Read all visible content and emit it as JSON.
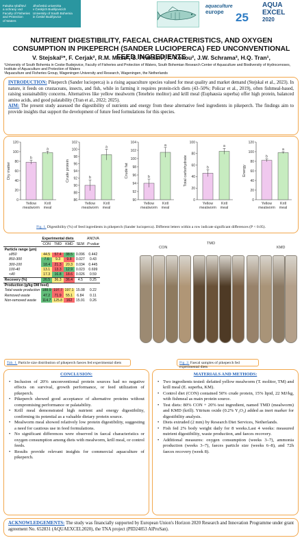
{
  "header": {
    "logo_left_lines_col1": [
      "Fakulta rybářství",
      "a ochrany vod",
      "Faculty of Fisheries",
      "and Protection",
      "of Waters"
    ],
    "logo_left_lines_col2": [
      "Jihočeská univerzita",
      "v Českých Budějovicích",
      "University of South Bohemia",
      "in České Budějovice"
    ],
    "ae_line1": "aquaculture",
    "ae_line2": "europe",
    "ae_num": "25",
    "aqua_line1": "AQUA",
    "aqua_line2": "EXCEL",
    "aqua_line3": "2020"
  },
  "title": "NUTRIENT DIGESTIBILITY, FAECAL CHARACTERISTICS, AND OXYGEN CONSUMPTION IN PIKEPERCH (SANDER LUCIOPERCA) FED UNCONVENTIONAL FEED INGREDIENTS",
  "authors": "V. Stejskal¹*, F. Cerjak², R.M. Mass², S. Prakash², F. Kokou², J.W. Schrama², H.Q. Tran¹,",
  "affiliations": [
    "¹University of South Bohemia in Ceske Budejovice, Faculty of Fisheries and Protection of Waters, South Bohemian Research Center of Aquaculture and Biodiversity of Hydrocenoses, Institute of Aquaculture and Protection of Waters",
    "²Aquaculture and Fisheries Group, Wageningen University and Research, Wageningen, the Netherlands"
  ],
  "intro": {
    "label": "INTRODUCTION:",
    "text": " Pikeperch (Sander lucioperca) is a rising aquaculture species valued for meat quality and market demand (Stejskal et al., 2023). In nature, it feeds on crustaceans, insects, and fish, while in farming it requires protein-rich diets (43–50%; Policar et al., 2019), often fishmeal-based, raising sustainability concerns. Alternatives like yellow mealworm (Tenebrio molitor) and krill meal (Euphausia superba) offer high protein, balanced amino acids, and good palatability (Tran et al., 2022; 2025).",
    "aim_label": "AIM:",
    "aim_text": " The present study assessed the digestibility of nutrients and energy from these alternative feed ingredients in pikeperch. The findings aim to provide insights that support the development of future feed formulations for this species."
  },
  "figure1_caption_label": "Fig. 1.",
  "figure1_caption": " Digestibility (%) of feed ingredients in pikeperch (Sander lucioperca). Different letters within a row indicate significant differences (P < 0.05).",
  "chart_data": [
    {
      "type": "bar",
      "ylabel": "Dry matter",
      "categories": [
        "Yellow mealworm",
        "Krill meal"
      ],
      "values": [
        78,
        98
      ],
      "errors": [
        4,
        3
      ],
      "letters": [
        "b",
        "a"
      ],
      "ylim": [
        0,
        120
      ],
      "yticks": [
        0,
        20,
        40,
        60,
        80,
        100,
        120
      ]
    },
    {
      "type": "bar",
      "ylabel": "Crude protein",
      "categories": [
        "Yellow mealworm",
        "Krill meal"
      ],
      "values": [
        90,
        98.5
      ],
      "errors": [
        1.5,
        1.5
      ],
      "letters": [
        "b",
        "a"
      ],
      "ylim": [
        86,
        102
      ],
      "yticks": [
        86,
        88,
        90,
        92,
        94,
        96,
        98,
        100,
        102
      ]
    },
    {
      "type": "bar",
      "ylabel": "Crude fat",
      "categories": [
        "Yellow mealworm",
        "Krill meal"
      ],
      "values": [
        94,
        101.5
      ],
      "errors": [
        1,
        1.2
      ],
      "letters": [
        "b",
        "a"
      ],
      "ylim": [
        90,
        104
      ],
      "yticks": [
        90,
        92,
        94,
        96,
        98,
        100,
        102,
        104
      ]
    },
    {
      "type": "bar",
      "ylabel": "Total carbohydrate",
      "categories": [
        "Yellow mealworm",
        "Krill meal"
      ],
      "values": [
        46,
        84
      ],
      "errors": [
        6,
        5
      ],
      "letters": [
        "b",
        "a"
      ],
      "ylim": [
        0,
        100
      ],
      "yticks": [
        0,
        20,
        40,
        60,
        80,
        100
      ]
    },
    {
      "type": "bar",
      "ylabel": "Energy",
      "categories": [
        "Yellow mealworm",
        "Krill meal"
      ],
      "values": [
        82,
        98
      ],
      "errors": [
        3,
        2
      ],
      "letters": [
        "b",
        "a"
      ],
      "ylim": [
        0,
        120
      ],
      "yticks": [
        0,
        20,
        40,
        60,
        80,
        100,
        120
      ]
    }
  ],
  "bar_colors": {
    "mealworm": "#f0c8ee",
    "krill": "#c7ecc0",
    "outline": "#555555"
  },
  "table": {
    "group_header": "Experimental diets",
    "columns": [
      "",
      "CON",
      "TMD",
      "KMD",
      "SEM",
      "ANOVA P-value"
    ],
    "section1": "Particle range (µm)",
    "rows1": [
      [
        "≥850",
        "44.5",
        "57.4",
        "38.5",
        "0.096",
        "0.442"
      ],
      [
        "850-300",
        "7.6",
        "9.3",
        "9.8",
        "0.027",
        "0.43"
      ],
      [
        "300-100",
        "18.4",
        "21.3",
        "20.3",
        "0.034",
        "0.445"
      ],
      [
        "100-40",
        "13.1",
        "13.3",
        "12.9",
        "0.023",
        "0.699"
      ],
      [
        "<40",
        "17.3",
        "16.8",
        "18.6",
        "0.026",
        "0.59"
      ]
    ],
    "recovery": [
      "Recovery (%)",
      "26.5",
      "36.3",
      "36.4",
      "4.5",
      "0.25"
    ],
    "section2": "Production (g/kg DM feed)",
    "rows2": [
      [
        "Total waste production",
        "188.9",
        "197.7",
        "197.1",
        "15.08",
        "0.22"
      ],
      [
        "Removed waste",
        "47.2",
        "71.9",
        "55.1",
        "6.84",
        "0.11"
      ],
      [
        "Non-removed waste",
        "114.7",
        "125.8",
        "162",
        "15.91",
        "0.26"
      ]
    ]
  },
  "table_caption_label": "Tab. 1.",
  "table_caption": " Particle size distribution of pikeperch faeces fed experimental diets",
  "photo_labels": [
    "CON",
    "TMD",
    "KMD"
  ],
  "figure2_caption_label": "Fig. 2.",
  "figure2_caption": " Faecal samples of pikeperch fed experimental diets",
  "conclusion": {
    "title": "CONCLUSION:",
    "items": [
      "Inclusion of 20% unconventional protein sources had no negative effects on survival, growth performance, or feed utilization of pikeperch.",
      "Pikeperch showed good acceptance of alternative proteins without compromising performance or palatability.",
      "Krill meal demonstrated high nutrient and energy digestibility, confirming its potential as a valuable dietary protein source.",
      "Mealworm meal showed relatively low protein digestibility, suggesting a need for cautious use in feed formulations.",
      "No significant differences were observed in faecal characteristics or oxygen consumption among diets with mealworm, krill meal, or control feeds.",
      "Results provide relevant insights for commercial aquaculture of pikeperch."
    ]
  },
  "methods": {
    "title": "MATERIALS AND METHODS:",
    "items": [
      "Two ingredients tested: defatted yellow mealworm (T. molitor, TM) and krill meal (E. superba, KM).",
      "Control diet (CON) contained 50% crude protein, 15% lipid, 22 MJ/kg, with fishmeal as main protein source.",
      "Test diets: 80% CON + 20% test ingredient, named TMD (mealworm) and KMD (krill). Yttrium oxide (0.2% Y₂O₃) added as inert marker for digestibility analysis.",
      "Diets extruded (2 mm) by Research Diet Services, Netherlands.",
      "Fish fed 2% body weight daily for 8 weeks.Last 4 weeks: measured nutrient digestibility, waste production, and faeces recovery.",
      "Additional measures: oxygen consumption (weeks 3–7), ammonia production (weeks 3–7), faeces particle size (weeks 6–8), and 72h faeces recovery (week 8)."
    ]
  },
  "ack": {
    "label": "ACKNOWLEDGEMENTS:",
    "text": " The study was financially supported by European Union's Horizon 2020 Research and Innovation Programme under grant agreement No. 652831 (AQUAEXCEL2020), the TNA project (PID24853 AlProSan)."
  }
}
